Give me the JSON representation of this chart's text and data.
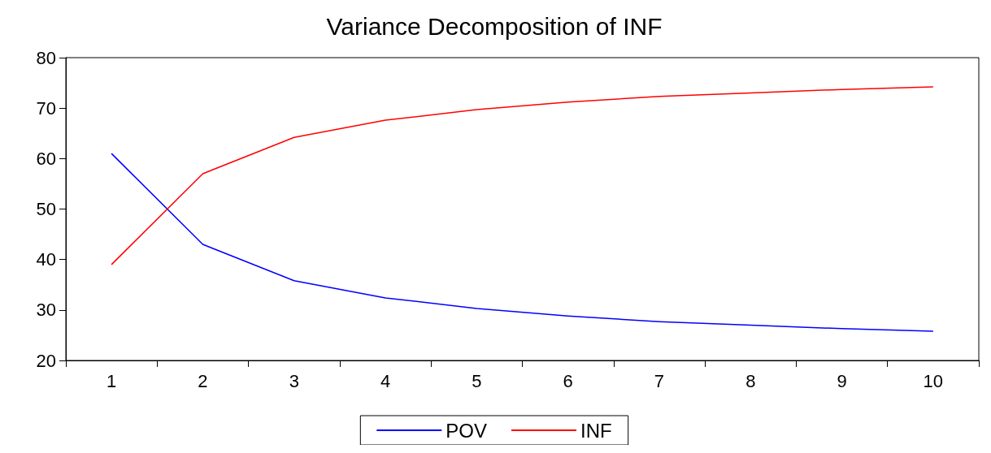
{
  "chart_data": {
    "type": "line",
    "title": "Variance Decomposition of INF",
    "categories": [
      "1",
      "2",
      "3",
      "4",
      "5",
      "6",
      "7",
      "8",
      "9",
      "10"
    ],
    "series": [
      {
        "name": "POV",
        "color": "#0000ff",
        "values": [
          61.0,
          43.0,
          35.8,
          32.4,
          30.3,
          28.8,
          27.7,
          27.0,
          26.3,
          25.8
        ]
      },
      {
        "name": "INF",
        "color": "#ff0000",
        "values": [
          39.0,
          57.0,
          64.2,
          67.6,
          69.7,
          71.2,
          72.3,
          73.0,
          73.7,
          74.2
        ]
      }
    ],
    "ylim": [
      20,
      80
    ],
    "yticks": [
      20,
      30,
      40,
      50,
      60,
      70,
      80
    ],
    "grid": false,
    "legend": "bottom",
    "marker": "none",
    "line_style": "solid"
  }
}
